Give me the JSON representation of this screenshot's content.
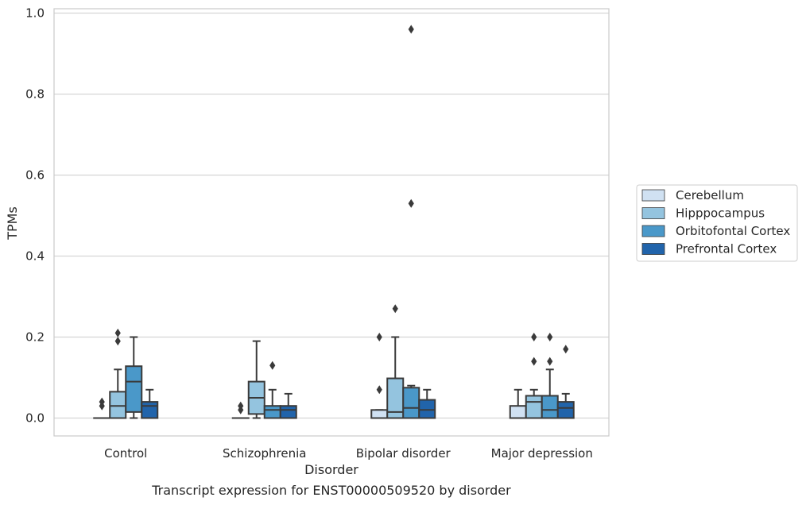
{
  "caption": "Transcript expression for ENST00000509520 by disorder",
  "chart_data": {
    "type": "box",
    "xlabel": "Disorder",
    "ylabel": "TPMs",
    "ylim": [
      -0.045,
      1.01
    ],
    "yticks": [
      "0.0",
      "0.2",
      "0.4",
      "0.6",
      "0.8",
      "1.0"
    ],
    "grid": true,
    "legend_position": "right",
    "categories": [
      "Control",
      "Schizophrenia",
      "Bipolar disorder",
      "Major depression"
    ],
    "series": [
      {
        "name": "Cerebellum",
        "color": "#d0e1f2",
        "boxes": [
          {
            "min": 0.0,
            "q1": 0.0,
            "median": 0.0,
            "q3": 0.0,
            "max": 0.0,
            "outliers": [
              0.03,
              0.04
            ]
          },
          {
            "min": 0.0,
            "q1": 0.0,
            "median": 0.0,
            "q3": 0.0,
            "max": 0.0,
            "outliers": [
              0.02,
              0.03
            ]
          },
          {
            "min": 0.0,
            "q1": 0.0,
            "median": 0.0,
            "q3": 0.02,
            "max": 0.02,
            "outliers": [
              0.07,
              0.2
            ]
          },
          {
            "min": 0.0,
            "q1": 0.0,
            "median": 0.0,
            "q3": 0.03,
            "max": 0.07,
            "outliers": []
          }
        ]
      },
      {
        "name": "Hipppocampus",
        "color": "#94c4df",
        "boxes": [
          {
            "min": 0.0,
            "q1": 0.0,
            "median": 0.03,
            "q3": 0.065,
            "max": 0.12,
            "outliers": [
              0.19,
              0.21
            ]
          },
          {
            "min": 0.0,
            "q1": 0.01,
            "median": 0.05,
            "q3": 0.09,
            "max": 0.19,
            "outliers": []
          },
          {
            "min": 0.0,
            "q1": 0.0,
            "median": 0.015,
            "q3": 0.098,
            "max": 0.2,
            "outliers": [
              0.27
            ]
          },
          {
            "min": 0.0,
            "q1": 0.0,
            "median": 0.04,
            "q3": 0.055,
            "max": 0.07,
            "outliers": [
              0.14,
              0.2
            ]
          }
        ]
      },
      {
        "name": "Orbitofontal Cortex",
        "color": "#4a98c9",
        "boxes": [
          {
            "min": 0.0,
            "q1": 0.015,
            "median": 0.09,
            "q3": 0.128,
            "max": 0.2,
            "outliers": []
          },
          {
            "min": 0.0,
            "q1": 0.0,
            "median": 0.02,
            "q3": 0.03,
            "max": 0.07,
            "outliers": [
              0.13
            ]
          },
          {
            "min": 0.0,
            "q1": 0.0,
            "median": 0.025,
            "q3": 0.075,
            "max": 0.08,
            "outliers": [
              0.53,
              0.96
            ]
          },
          {
            "min": 0.0,
            "q1": 0.0,
            "median": 0.02,
            "q3": 0.055,
            "max": 0.12,
            "outliers": [
              0.14,
              0.2
            ]
          }
        ]
      },
      {
        "name": "Prefrontal Cortex",
        "color": "#2164ab",
        "boxes": [
          {
            "min": 0.0,
            "q1": 0.0,
            "median": 0.03,
            "q3": 0.04,
            "max": 0.07,
            "outliers": []
          },
          {
            "min": 0.0,
            "q1": 0.0,
            "median": 0.02,
            "q3": 0.03,
            "max": 0.06,
            "outliers": []
          },
          {
            "min": 0.0,
            "q1": 0.0,
            "median": 0.02,
            "q3": 0.045,
            "max": 0.07,
            "outliers": []
          },
          {
            "min": 0.0,
            "q1": 0.0,
            "median": 0.025,
            "q3": 0.04,
            "max": 0.06,
            "outliers": [
              0.17
            ]
          }
        ]
      }
    ]
  }
}
